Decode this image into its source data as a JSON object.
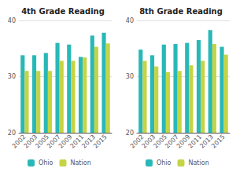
{
  "chart_data": [
    {
      "type": "bar",
      "title": "4th Grade Reading",
      "categories": [
        "2002",
        "2003",
        "2005",
        "2007",
        "2009",
        "2011",
        "2013",
        "2015"
      ],
      "series": [
        {
          "name": "Ohio",
          "color": "#29b8b8",
          "values": [
            33.8,
            33.8,
            34.2,
            36.0,
            35.7,
            33.5,
            37.3,
            37.8
          ]
        },
        {
          "name": "Nation",
          "color": "#c5d444",
          "values": [
            31.0,
            31.0,
            31.0,
            32.8,
            32.8,
            33.4,
            35.3,
            35.9
          ]
        }
      ],
      "ylim": [
        20,
        40
      ],
      "yticks": [
        20,
        30,
        40
      ],
      "grid": true,
      "legend": "bottom"
    },
    {
      "type": "bar",
      "title": "8th Grade Reading",
      "categories": [
        "2002",
        "2003",
        "2005",
        "2007",
        "2009",
        "2011",
        "2013",
        "2015"
      ],
      "series": [
        {
          "name": "Ohio",
          "color": "#29b8b8",
          "values": [
            34.8,
            33.8,
            35.7,
            35.8,
            36.0,
            36.5,
            38.3,
            35.3
          ]
        },
        {
          "name": "Nation",
          "color": "#c5d444",
          "values": [
            32.8,
            31.8,
            30.8,
            31.0,
            32.0,
            32.8,
            35.8,
            33.9
          ]
        }
      ],
      "ylim": [
        20,
        40
      ],
      "yticks": [
        20,
        30,
        40
      ],
      "grid": true,
      "legend": "bottom"
    }
  ]
}
